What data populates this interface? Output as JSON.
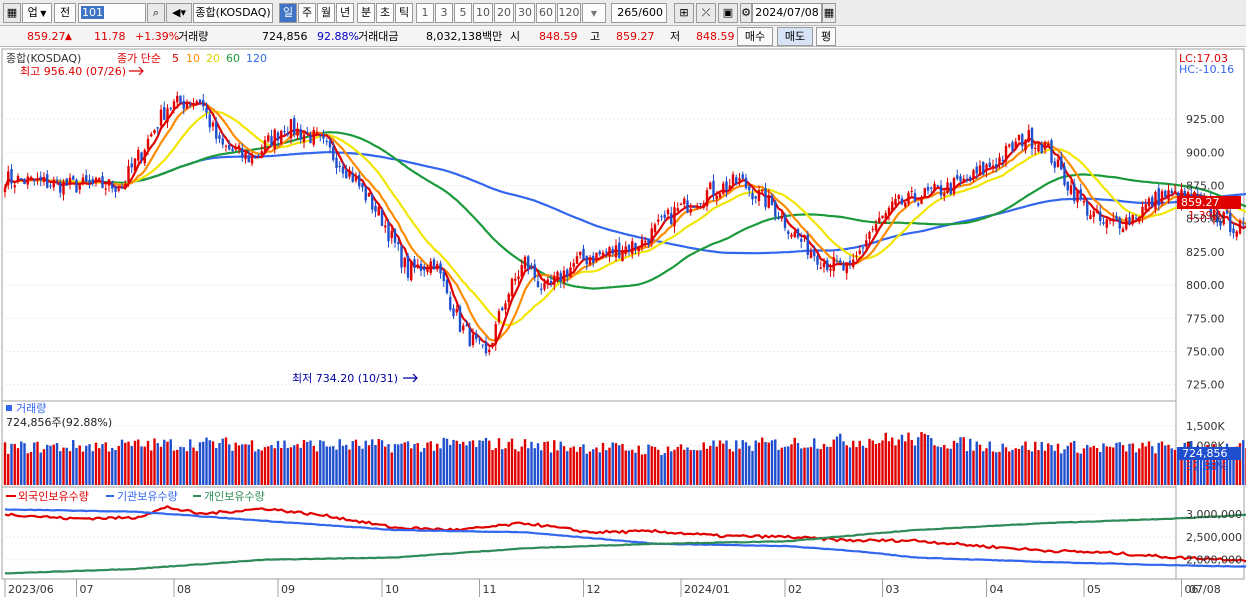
{
  "toolbar": {
    "market_label": "업",
    "prev_label": "전",
    "code_value": "101",
    "index_name": "종합(KOSDAQ)",
    "period_tabs": [
      "일",
      "주",
      "월",
      "년",
      "분",
      "초",
      "틱"
    ],
    "interval_buttons": [
      "1",
      "3",
      "5",
      "10",
      "20",
      "30",
      "60",
      "120"
    ],
    "count_value": "265/600",
    "date_value": "2024/07/08"
  },
  "quote": {
    "price": "859.27",
    "change": "11.78",
    "change_pct": "+1.39%",
    "volume_label": "거래량",
    "volume_value": "724,856",
    "volume_ratio": "92.88%",
    "amount_label": "거래대금",
    "amount_value": "8,032,138백만",
    "open_label": "시",
    "open_value": "848.59",
    "high_label": "고",
    "high_value": "859.27",
    "low_label": "저",
    "low_value": "848.59",
    "buy_label": "매수",
    "sell_label": "매도",
    "eval_label": "평"
  },
  "colors": {
    "up": "#e00000",
    "down": "#1f4fcf",
    "ma5": "#e00000",
    "ma10": "#ff8c00",
    "ma20": "#f2e600",
    "ma60": "#1a9a3a",
    "ma120": "#3366ee",
    "foreign": "#e00000",
    "institution": "#3366ee",
    "individual": "#2e8b57"
  },
  "chart_data": [
    {
      "type": "candlestick",
      "title": "종합(KOSDAQ)",
      "ma_label": "종가 단순",
      "ma_periods": [
        "5",
        "10",
        "20",
        "60",
        "120"
      ],
      "right_labels": [
        "LC:17.03",
        "HC:-10.16"
      ],
      "last_price_label": "859.27",
      "last_pct_label": "1.39%",
      "ylim": [
        718,
        968
      ],
      "y_ticks": [
        "925.00",
        "900.00",
        "875.00",
        "850.00",
        "825.00",
        "800.00",
        "775.00",
        "750.00",
        "725.00"
      ],
      "y_tick_values": [
        925,
        900,
        875,
        850,
        825,
        800,
        775,
        750,
        725
      ],
      "annotations": {
        "high": "최고 956.40 (07/26)",
        "low": "최저 734.20 (10/31)"
      },
      "key_closes": [
        {
          "x": 0,
          "close": 880
        },
        {
          "x": 20,
          "close": 875
        },
        {
          "x": 36,
          "close": 875
        },
        {
          "x": 50,
          "close": 935
        },
        {
          "x": 60,
          "close": 940
        },
        {
          "x": 66,
          "close": 905
        },
        {
          "x": 76,
          "close": 895
        },
        {
          "x": 86,
          "close": 920
        },
        {
          "x": 96,
          "close": 910
        },
        {
          "x": 106,
          "close": 885
        },
        {
          "x": 116,
          "close": 850
        },
        {
          "x": 124,
          "close": 810
        },
        {
          "x": 132,
          "close": 818
        },
        {
          "x": 140,
          "close": 770
        },
        {
          "x": 148,
          "close": 745
        },
        {
          "x": 154,
          "close": 790
        },
        {
          "x": 160,
          "close": 818
        },
        {
          "x": 166,
          "close": 795
        },
        {
          "x": 176,
          "close": 818
        },
        {
          "x": 186,
          "close": 825
        },
        {
          "x": 196,
          "close": 832
        },
        {
          "x": 206,
          "close": 855
        },
        {
          "x": 216,
          "close": 870
        },
        {
          "x": 226,
          "close": 878
        },
        {
          "x": 236,
          "close": 860
        },
        {
          "x": 244,
          "close": 835
        },
        {
          "x": 252,
          "close": 818
        },
        {
          "x": 260,
          "close": 810
        },
        {
          "x": 266,
          "close": 840
        },
        {
          "x": 274,
          "close": 860
        },
        {
          "x": 286,
          "close": 870
        },
        {
          "x": 296,
          "close": 878
        },
        {
          "x": 306,
          "close": 895
        },
        {
          "x": 314,
          "close": 912
        },
        {
          "x": 320,
          "close": 905
        },
        {
          "x": 326,
          "close": 880
        },
        {
          "x": 332,
          "close": 860
        },
        {
          "x": 338,
          "close": 845
        },
        {
          "x": 346,
          "close": 850
        },
        {
          "x": 356,
          "close": 868
        },
        {
          "x": 366,
          "close": 865
        },
        {
          "x": 374,
          "close": 850
        },
        {
          "x": 382,
          "close": 840
        },
        {
          "x": 390,
          "close": 845
        },
        {
          "x": 398,
          "close": 862
        },
        {
          "x": 406,
          "close": 870
        },
        {
          "x": 414,
          "close": 855
        },
        {
          "x": 422,
          "close": 840
        },
        {
          "x": 428,
          "close": 845
        },
        {
          "x": 432,
          "close": 859.27
        }
      ]
    },
    {
      "type": "bar",
      "title": "거래량",
      "summary_label": "724,856주(92.88%)",
      "y_ticks": [
        "1,500K",
        "1,000K"
      ],
      "y_tick_values": [
        1500,
        1000
      ],
      "ylim": [
        0,
        1800
      ],
      "last_value_label": "724,856",
      "last_pct_label": "92.88%",
      "key_values": [
        {
          "x": 0,
          "value": 950
        },
        {
          "x": 60,
          "value": 1050
        },
        {
          "x": 120,
          "value": 1000
        },
        {
          "x": 150,
          "value": 1050
        },
        {
          "x": 200,
          "value": 900
        },
        {
          "x": 250,
          "value": 1100
        },
        {
          "x": 280,
          "value": 1180
        },
        {
          "x": 300,
          "value": 1000
        },
        {
          "x": 340,
          "value": 950
        },
        {
          "x": 380,
          "value": 980
        },
        {
          "x": 400,
          "value": 1050
        },
        {
          "x": 420,
          "value": 800
        },
        {
          "x": 432,
          "value": 725
        }
      ]
    },
    {
      "type": "line",
      "series_names": [
        "외국인보유수량",
        "기관보유수량",
        "개인보유수량"
      ],
      "y_ticks": [
        "3,000,000",
        "2,500,000",
        "2,000,000"
      ],
      "y_tick_values": [
        3000000,
        2500000,
        2000000
      ],
      "ylim": [
        1600000,
        3350000
      ],
      "series": [
        {
          "name": "외국인보유수량",
          "points": [
            [
              0,
              3000000
            ],
            [
              20,
              2900000
            ],
            [
              40,
              2920000
            ],
            [
              50,
              3150000
            ],
            [
              60,
              3000000
            ],
            [
              80,
              3120000
            ],
            [
              100,
              2950000
            ],
            [
              120,
              2700000
            ],
            [
              140,
              2650000
            ],
            [
              160,
              2800000
            ],
            [
              180,
              2600000
            ],
            [
              200,
              2620000
            ],
            [
              220,
              2520000
            ],
            [
              240,
              2500000
            ],
            [
              260,
              2420000
            ],
            [
              280,
              2420000
            ],
            [
              300,
              2300000
            ],
            [
              320,
              2200000
            ],
            [
              340,
              2150000
            ],
            [
              360,
              2050000
            ],
            [
              380,
              2000000
            ],
            [
              400,
              1900000
            ],
            [
              420,
              1800000
            ],
            [
              432,
              1720000
            ]
          ]
        },
        {
          "name": "기관보유수량",
          "points": [
            [
              0,
              3100000
            ],
            [
              40,
              3050000
            ],
            [
              80,
              2850000
            ],
            [
              120,
              2650000
            ],
            [
              160,
              2600000
            ],
            [
              200,
              2350000
            ],
            [
              240,
              2300000
            ],
            [
              260,
              2200000
            ],
            [
              280,
              2050000
            ],
            [
              320,
              1950000
            ],
            [
              360,
              1880000
            ],
            [
              400,
              1820000
            ],
            [
              432,
              1700000
            ]
          ]
        },
        {
          "name": "개인보유수량",
          "points": [
            [
              0,
              1700000
            ],
            [
              40,
              1800000
            ],
            [
              80,
              2000000
            ],
            [
              120,
              2050000
            ],
            [
              160,
              2250000
            ],
            [
              200,
              2350000
            ],
            [
              240,
              2400000
            ],
            [
              280,
              2650000
            ],
            [
              320,
              2800000
            ],
            [
              360,
              2900000
            ],
            [
              400,
              3050000
            ],
            [
              432,
              3150000
            ]
          ]
        }
      ]
    }
  ],
  "x_axis": {
    "labels": [
      "2023/06",
      "07",
      "08",
      "09",
      "10",
      "11",
      "12",
      "2024/01",
      "02",
      "03",
      "04",
      "05",
      "06",
      "07",
      "07/08"
    ],
    "label_index": [
      0,
      22,
      52,
      84,
      116,
      146,
      178,
      208,
      240,
      270,
      302,
      332,
      362,
      390,
      418
    ]
  }
}
